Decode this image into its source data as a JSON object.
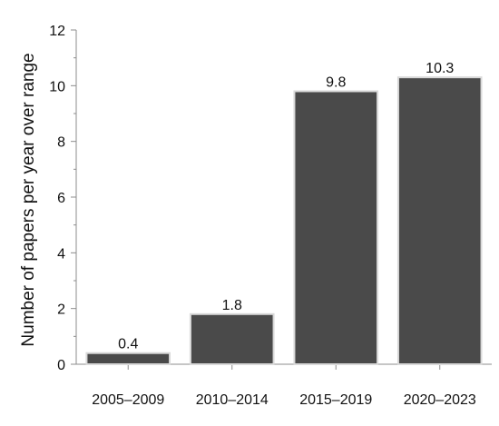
{
  "chart_data": {
    "type": "bar",
    "title": "",
    "xlabel": "",
    "ylabel": "Number of papers per year over range",
    "categories": [
      "2005–2009",
      "2010–2014",
      "2015–2019",
      "2020–2023"
    ],
    "values": [
      0.4,
      1.8,
      9.8,
      10.3
    ],
    "data_labels": [
      "0.4",
      "1.8",
      "9.8",
      "10.3"
    ],
    "ylim": [
      0,
      12
    ],
    "yticks": [
      0,
      2,
      4,
      6,
      8,
      10,
      12
    ],
    "ytick_labels": [
      "0",
      "2",
      "4",
      "6",
      "8",
      "10",
      "12"
    ],
    "minor_ticks": true,
    "grid": false,
    "legend": "none",
    "colors": {
      "bar_fill": "#4a4a4a",
      "bar_outline": "#d9d9d9",
      "axis": "#8c8c8c"
    }
  }
}
